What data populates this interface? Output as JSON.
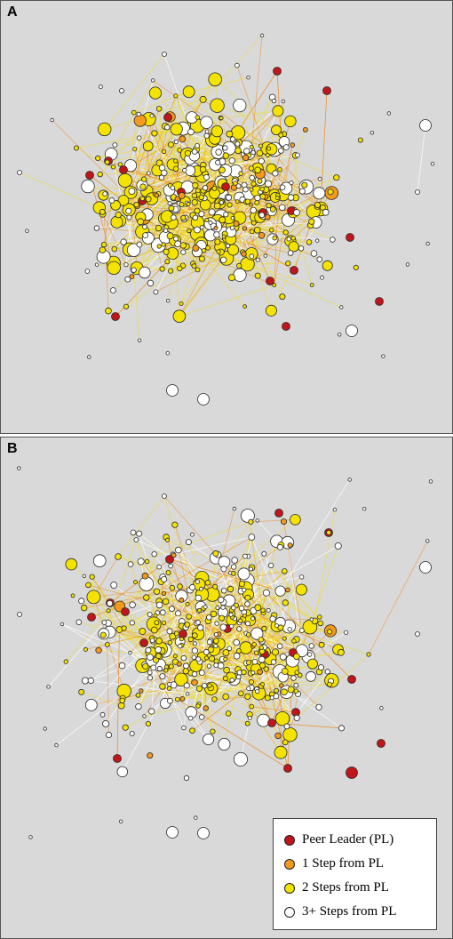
{
  "panels": [
    {
      "label": "A"
    },
    {
      "label": "B"
    }
  ],
  "legend": {
    "items": [
      {
        "label": "Peer Leader (PL)",
        "color": "#c0161b"
      },
      {
        "label": "1 Step from PL",
        "color": "#f39a1e"
      },
      {
        "label": "2 Steps from PL",
        "color": "#f4e200"
      },
      {
        "label": "3+ Steps from PL",
        "color": "#ffffff"
      }
    ]
  },
  "colors": {
    "background": "#d9d9d9",
    "edge_white": "#ffffff",
    "edge_yellow": "#f2dd1c",
    "edge_orange": "#ee8a1c",
    "node_outline": "#2a2a2a"
  }
}
